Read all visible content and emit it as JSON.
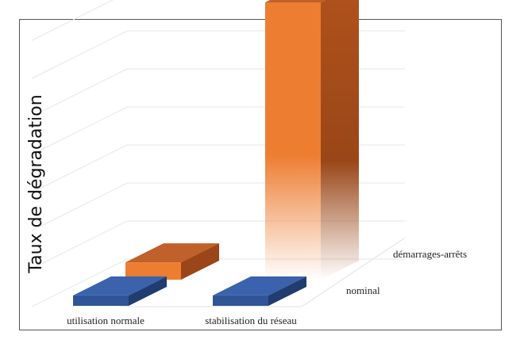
{
  "chart_data": {
    "type": "bar",
    "title": "",
    "ylabel": "Taux de dégradation",
    "xlabel": "",
    "categories": [
      "utilisation normale",
      "stabilisation du réseau"
    ],
    "series": [
      {
        "name": "nominal",
        "values": [
          0.3,
          0.3
        ]
      },
      {
        "name": "démarrages-arrêts",
        "values": [
          0.5,
          8.0
        ]
      }
    ],
    "ylim": [
      0,
      8
    ],
    "grid": true,
    "legend": "none",
    "colors": {
      "nominal": "#2f5597",
      "démarrages-arrêts": "#ed7d31"
    }
  }
}
